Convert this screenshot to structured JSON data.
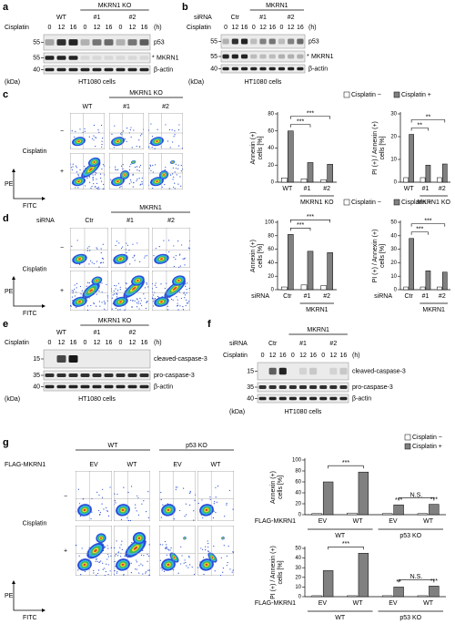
{
  "panels": {
    "a": {
      "letter": "a",
      "group": "MKRN1 KO",
      "lanes": [
        "WT",
        "#1",
        "#2"
      ],
      "treatment": "Cisplatin",
      "times": [
        "0",
        "12",
        "16"
      ],
      "time_unit": "(h)",
      "rows": [
        {
          "mw": "55",
          "label": "p53"
        },
        {
          "mw": "55",
          "label": "MKRN1",
          "marker": "*"
        },
        {
          "mw": "40",
          "label": "β-actin"
        }
      ],
      "unit": "(kDa)",
      "cells": "HT1080 cells"
    },
    "b": {
      "letter": "b",
      "group": "MKRN1",
      "lanes_label": "siRNA",
      "lanes": [
        "Ctr",
        "#1",
        "#2"
      ],
      "treatment": "Cisplatin",
      "times": [
        "0",
        "12",
        "16"
      ],
      "time_unit": "(h)",
      "rows": [
        {
          "mw": "55",
          "label": "p53"
        },
        {
          "mw": "55",
          "label": "MKRN1",
          "marker": "*"
        },
        {
          "mw": "40",
          "label": "β-actin"
        }
      ],
      "unit": "(kDa)",
      "cells": "HT1080 cells"
    },
    "c": {
      "letter": "c",
      "group": "MKRN1 KO",
      "columns": [
        "WT",
        "#1",
        "#2"
      ],
      "treatment": "Cisplatin",
      "rows": [
        "−",
        "+"
      ],
      "y_axis": "PE",
      "x_axis": "FITC"
    },
    "d": {
      "letter": "d",
      "group": "MKRN1",
      "lanes_label": "siRNA",
      "columns": [
        "Ctr",
        "#1",
        "#2"
      ],
      "treatment": "Cisplatin",
      "rows": [
        "−",
        "+"
      ],
      "y_axis": "PE",
      "x_axis": "FITC"
    },
    "e": {
      "letter": "e",
      "group": "MKRN1 KO",
      "lanes": [
        "WT",
        "#1",
        "#2"
      ],
      "treatment": "Cisplatin",
      "times": [
        "0",
        "12",
        "16"
      ],
      "time_unit": "(h)",
      "rows": [
        {
          "mw": "15",
          "label": "cleaved-caspase-3"
        },
        {
          "mw": "35",
          "label": "pro-caspase-3"
        },
        {
          "mw": "40",
          "label": "β-actin"
        }
      ],
      "unit": "(kDa)",
      "cells": "HT1080 cells"
    },
    "f": {
      "letter": "f",
      "group": "MKRN1",
      "lanes_label": "siRNA",
      "lanes": [
        "Ctr",
        "#1",
        "#2"
      ],
      "treatment": "Cisplatin",
      "times": [
        "0",
        "12",
        "16"
      ],
      "time_unit": "(h)",
      "rows": [
        {
          "mw": "15",
          "label": "cleaved-caspase-3"
        },
        {
          "mw": "35",
          "label": "pro-caspase-3"
        },
        {
          "mw": "40",
          "label": "β-actin"
        }
      ],
      "unit": "(kDa)",
      "cells": "HT1080 cells"
    },
    "g": {
      "letter": "g",
      "groups": [
        "WT",
        "p53 KO"
      ],
      "lanes_label": "FLAG-MKRN1",
      "columns": [
        "EV",
        "WT",
        "EV",
        "WT"
      ],
      "treatment": "Cisplatin",
      "rows": [
        "−",
        "+"
      ],
      "y_axis": "PE",
      "x_axis": "FITC"
    }
  },
  "chart_data": [
    {
      "type": "bar",
      "ylabel": [
        "Annexin (+)",
        "cells [%]"
      ],
      "categories": [
        "WT",
        "#1",
        "#2"
      ],
      "groups": [
        "MKRN1 KO"
      ],
      "series": [
        {
          "name": "Cisplatin −",
          "color": "#ffffff",
          "values": [
            5,
            4,
            3
          ]
        },
        {
          "name": "Cisplatin +",
          "color": "#808080",
          "values": [
            60,
            23,
            21
          ]
        }
      ],
      "ylim": [
        0,
        80
      ],
      "yticks": [
        0,
        20,
        40,
        60,
        80
      ],
      "annotations": [
        "***",
        "***"
      ]
    },
    {
      "type": "bar",
      "ylabel": [
        "PI (+) / Annexin (+)",
        "cells [%]"
      ],
      "categories": [
        "WT",
        "#1",
        "#2"
      ],
      "groups": [
        "MKRN1 KO"
      ],
      "series": [
        {
          "color": "#ffffff",
          "values": [
            2,
            2,
            2
          ]
        },
        {
          "color": "#808080",
          "values": [
            21,
            7.5,
            8
          ]
        }
      ],
      "ylim": [
        0,
        30
      ],
      "yticks": [
        0,
        10,
        20,
        30
      ],
      "annotations": [
        "**",
        "**"
      ]
    },
    {
      "type": "bar",
      "ylabel": [
        "Annexin (+)",
        "cells [%]"
      ],
      "xlabel": "siRNA",
      "categories": [
        "Ctr",
        "#1",
        "#2"
      ],
      "groups": [
        "MKRN1"
      ],
      "series": [
        {
          "name": "Cisplatin −",
          "color": "#ffffff",
          "values": [
            4,
            7,
            6
          ]
        },
        {
          "name": "Cisplatin +",
          "color": "#808080",
          "values": [
            82,
            57,
            55
          ]
        }
      ],
      "ylim": [
        0,
        100
      ],
      "yticks": [
        0,
        20,
        40,
        60,
        80,
        100
      ],
      "annotations": [
        "***",
        "***"
      ]
    },
    {
      "type": "bar",
      "ylabel": [
        "PI (+) / Annexin (+)",
        "cells [%]"
      ],
      "xlabel": "siRNA",
      "categories": [
        "Ctr",
        "#1",
        "#2"
      ],
      "groups": [
        "MKRN1"
      ],
      "series": [
        {
          "color": "#ffffff",
          "values": [
            2,
            2,
            2
          ]
        },
        {
          "color": "#808080",
          "values": [
            38,
            14,
            13
          ]
        }
      ],
      "ylim": [
        0,
        50
      ],
      "yticks": [
        0,
        10,
        20,
        30,
        40,
        50
      ],
      "annotations": [
        "***",
        "***"
      ]
    },
    {
      "type": "bar",
      "ylabel": [
        "Annexin (+)",
        "cells [%]"
      ],
      "xlabel": "FLAG-MKRN1",
      "categories": [
        "EV",
        "WT",
        "EV",
        "WT"
      ],
      "groups": [
        "WT",
        "p53 KO"
      ],
      "series": [
        {
          "name": "Cisplatin −",
          "color": "#ffffff",
          "values": [
            2,
            3,
            2,
            2
          ]
        },
        {
          "name": "Cisplatin +",
          "color": "#808080",
          "values": [
            60,
            78,
            18,
            19
          ]
        }
      ],
      "ylim": [
        0,
        100
      ],
      "yticks": [
        0,
        20,
        40,
        60,
        80,
        100
      ],
      "annotations": [
        "***",
        "N.S.",
        "***",
        "***"
      ]
    },
    {
      "type": "bar",
      "ylabel": [
        "PI (+) / Annexin (+)",
        "cells [%]"
      ],
      "xlabel": "FLAG-MKRN1",
      "categories": [
        "EV",
        "WT",
        "EV",
        "WT"
      ],
      "groups": [
        "WT",
        "p53 KO"
      ],
      "series": [
        {
          "color": "#ffffff",
          "values": [
            1,
            1,
            1,
            1
          ]
        },
        {
          "color": "#808080",
          "values": [
            27,
            45,
            10,
            11
          ]
        }
      ],
      "ylim": [
        0,
        50
      ],
      "yticks": [
        0,
        10,
        20,
        30,
        40,
        50
      ],
      "annotations": [
        "***",
        "N.S.",
        "**",
        "***"
      ]
    }
  ]
}
